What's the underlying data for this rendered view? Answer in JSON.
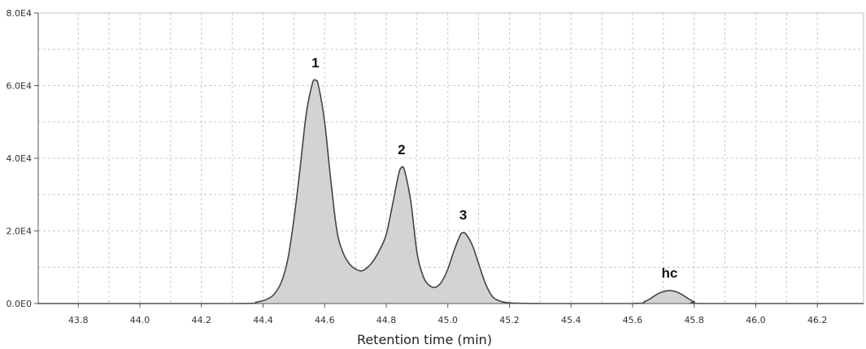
{
  "chart_data": {
    "type": "area",
    "title": "",
    "xlabel": "Retention time (min)",
    "ylabel": "",
    "xlim": [
      43.67,
      46.35
    ],
    "ylim": [
      0,
      80000
    ],
    "x_ticks": [
      43.8,
      44.0,
      44.2,
      44.4,
      44.6,
      44.8,
      45.0,
      45.2,
      45.4,
      45.6,
      45.8,
      46.0,
      46.2
    ],
    "x_tick_labels": [
      "43.8",
      "44.0",
      "44.2",
      "44.4",
      "44.6",
      "44.8",
      "45.0",
      "45.2",
      "45.4",
      "45.6",
      "45.8",
      "46.0",
      "46.2"
    ],
    "y_ticks": [
      0,
      20000,
      40000,
      60000,
      80000
    ],
    "y_tick_labels": [
      "0.0E0",
      "2.0E4",
      "4.0E4",
      "6.0E4",
      "8.0E4"
    ],
    "grid": true,
    "legend": "none",
    "colors": {
      "fill": "#d3d3d3",
      "line": "#444444",
      "grid": "#c8c8c8"
    },
    "peaks": [
      {
        "label": "1",
        "x": 44.57,
        "y": 61500
      },
      {
        "label": "2",
        "x": 44.85,
        "y": 37500
      },
      {
        "label": "3",
        "x": 45.05,
        "y": 19500
      },
      {
        "label": "hc",
        "x": 45.72,
        "y": 3600
      }
    ],
    "series": [
      {
        "x": [
          43.67,
          44.3,
          44.38,
          44.42,
          44.44,
          44.46,
          44.48,
          44.5,
          44.52,
          44.54,
          44.56,
          44.57,
          44.58,
          44.6,
          44.62,
          44.64,
          44.66,
          44.68,
          44.7,
          44.72,
          44.74,
          44.76,
          44.78,
          44.8,
          44.82,
          44.84,
          44.85,
          44.86,
          44.88,
          44.9,
          44.92,
          44.94,
          44.96,
          44.98,
          45.0,
          45.02,
          45.04,
          45.05,
          45.06,
          45.08,
          45.1,
          45.12,
          45.14,
          45.16,
          45.2,
          45.3,
          45.6,
          45.64,
          45.66,
          45.68,
          45.7,
          45.72,
          45.74,
          45.76,
          45.78,
          45.8,
          45.84,
          46.35
        ],
        "y": [
          0,
          0,
          400,
          1500,
          3000,
          6000,
          12000,
          23000,
          37000,
          52000,
          60500,
          61500,
          60000,
          50000,
          34000,
          20000,
          14000,
          11000,
          9500,
          9000,
          10000,
          12000,
          15000,
          19000,
          27000,
          35500,
          37500,
          36500,
          28000,
          14000,
          7500,
          5000,
          4500,
          6000,
          9500,
          14500,
          18800,
          19500,
          19000,
          16000,
          11000,
          6000,
          2500,
          1000,
          200,
          0,
          0,
          600,
          1500,
          2600,
          3300,
          3600,
          3300,
          2500,
          1400,
          500,
          0,
          0
        ]
      }
    ]
  }
}
